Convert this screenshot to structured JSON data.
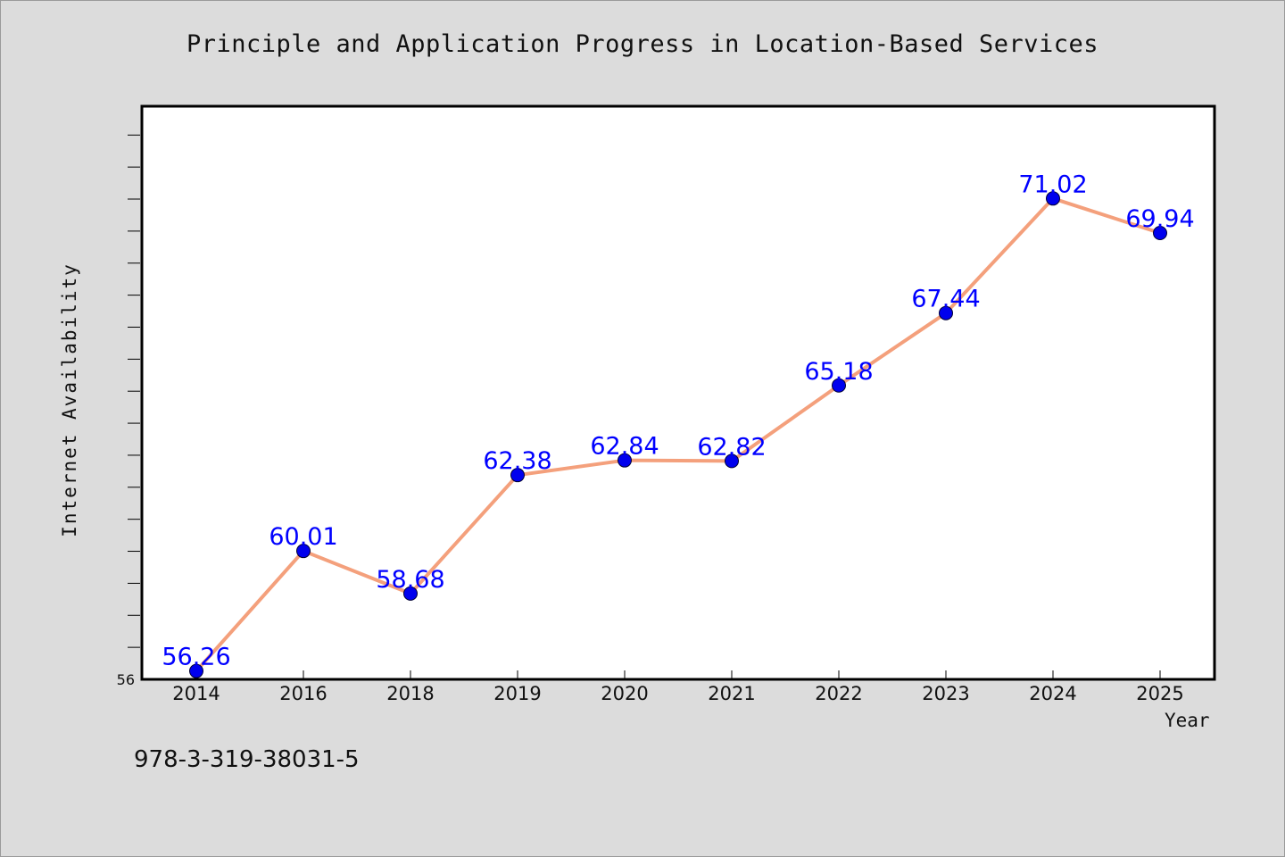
{
  "chart_data": {
    "type": "line",
    "title": "Principle and Application Progress in Location-Based Services",
    "xlabel": "Year",
    "ylabel": "Internet Availability",
    "categories": [
      "2014",
      "2016",
      "2018",
      "2019",
      "2020",
      "2021",
      "2022",
      "2023",
      "2024",
      "2025"
    ],
    "series": [
      {
        "values": [
          56.26,
          60.01,
          58.68,
          62.38,
          62.84,
          62.82,
          65.18,
          67.44,
          71.02,
          69.94
        ],
        "labels": [
          "56.26",
          "60.01",
          "58.68",
          "62.38",
          "62.84",
          "62.82",
          "65.18",
          "67.44",
          "71.02",
          "69.94"
        ],
        "line_color": "#f4a07c",
        "marker_color": "#0000ee",
        "label_color": "#0000ff"
      }
    ],
    "ylim": [
      56,
      73.9
    ],
    "y_tick_labels": [
      "56"
    ],
    "grid": false,
    "legend": "none"
  },
  "footer": {
    "text": "978-3-319-38031-5"
  },
  "colors": {
    "background": "#dcdcdc",
    "plot_background": "#ffffff"
  }
}
